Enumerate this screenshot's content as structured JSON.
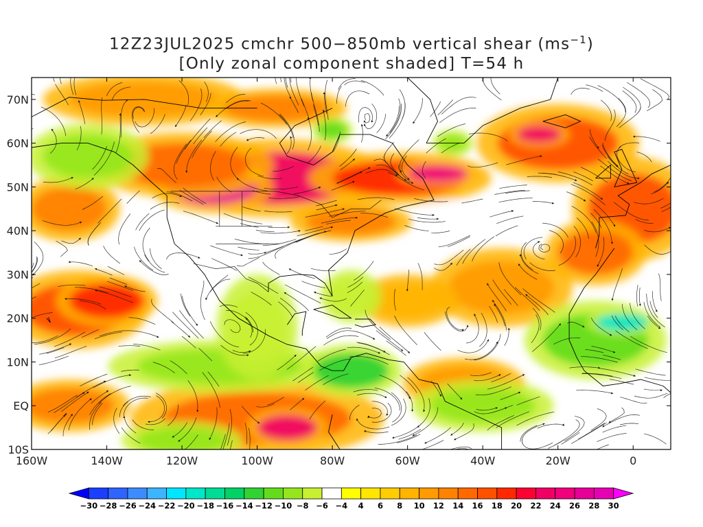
{
  "title": {
    "line1_main": "12Z23JUL2025 cmchr 500−850mb vertical shear (ms",
    "line1_sup": "−1",
    "line1_close": ")",
    "line2": "[Only zonal component shaded] T=54 h"
  },
  "map": {
    "extent": {
      "lon_min": -160,
      "lon_max": 10,
      "lat_min": -10,
      "lat_max": 75
    },
    "lat_labels": [
      {
        "lat": 70,
        "text": "70N"
      },
      {
        "lat": 60,
        "text": "60N"
      },
      {
        "lat": 50,
        "text": "50N"
      },
      {
        "lat": 40,
        "text": "40N"
      },
      {
        "lat": 30,
        "text": "30N"
      },
      {
        "lat": 20,
        "text": "20N"
      },
      {
        "lat": 10,
        "text": "10N"
      },
      {
        "lat": 0,
        "text": "EQ"
      },
      {
        "lat": -10,
        "text": "10S"
      }
    ],
    "lon_labels": [
      {
        "lon": -160,
        "text": "160W"
      },
      {
        "lon": -140,
        "text": "140W"
      },
      {
        "lon": -120,
        "text": "120W"
      },
      {
        "lon": -100,
        "text": "100W"
      },
      {
        "lon": -80,
        "text": "80W"
      },
      {
        "lon": -60,
        "text": "60W"
      },
      {
        "lon": -40,
        "text": "40W"
      },
      {
        "lon": -20,
        "text": "20W"
      },
      {
        "lon": 0,
        "text": "0"
      }
    ],
    "shear_blobs": [
      {
        "lon": -95,
        "lat": 52,
        "rlon": 22,
        "rlat": 6,
        "value": 22
      },
      {
        "lon": -112,
        "lat": 50,
        "rlon": 12,
        "rlat": 4,
        "value": 26
      },
      {
        "lon": -120,
        "lat": 55,
        "rlon": 18,
        "rlat": 5,
        "value": 14
      },
      {
        "lon": -62,
        "lat": 52,
        "rlon": 18,
        "rlat": 4,
        "value": 18
      },
      {
        "lon": -52,
        "lat": 53,
        "rlon": 8,
        "rlat": 2,
        "value": 24
      },
      {
        "lon": -20,
        "lat": 60,
        "rlon": 16,
        "rlat": 6,
        "value": 16
      },
      {
        "lon": -25,
        "lat": 62,
        "rlon": 6,
        "rlat": 2,
        "value": 22
      },
      {
        "lon": 0,
        "lat": 45,
        "rlon": 12,
        "rlat": 8,
        "value": 16
      },
      {
        "lon": -148,
        "lat": 22,
        "rlon": 14,
        "rlat": 6,
        "value": 16
      },
      {
        "lon": -140,
        "lat": 24,
        "rlon": 10,
        "rlat": 4,
        "value": 18
      },
      {
        "lon": -100,
        "lat": -3,
        "rlon": 25,
        "rlat": 6,
        "value": 14
      },
      {
        "lon": -92,
        "lat": -5,
        "rlon": 8,
        "rlat": 3,
        "value": 22
      },
      {
        "lon": -150,
        "lat": 0,
        "rlon": 12,
        "rlat": 4,
        "value": 12
      },
      {
        "lon": -45,
        "lat": 5,
        "rlon": 12,
        "rlat": 4,
        "value": 10
      },
      {
        "lon": -35,
        "lat": 27,
        "rlon": 14,
        "rlat": 6,
        "value": 10
      },
      {
        "lon": -10,
        "lat": 35,
        "rlon": 10,
        "rlat": 5,
        "value": 14
      },
      {
        "lon": -75,
        "lat": 42,
        "rlon": 12,
        "rlat": 3,
        "value": 12
      },
      {
        "lon": -150,
        "lat": 45,
        "rlon": 10,
        "rlat": 5,
        "value": 12
      },
      {
        "lon": -130,
        "lat": 70,
        "rlon": 20,
        "rlat": 4,
        "value": 10
      },
      {
        "lon": -95,
        "lat": 68,
        "rlon": 14,
        "rlat": 3,
        "value": 12
      },
      {
        "lon": -60,
        "lat": 24,
        "rlon": 10,
        "rlat": 4,
        "value": 8
      },
      {
        "lon": -145,
        "lat": 57,
        "rlon": 12,
        "rlat": 5,
        "value": -10
      },
      {
        "lon": -110,
        "lat": 9,
        "rlon": 22,
        "rlat": 4,
        "value": -10
      },
      {
        "lon": -75,
        "lat": 8,
        "rlon": 10,
        "rlat": 4,
        "value": -14
      },
      {
        "lon": -40,
        "lat": 0,
        "rlon": 14,
        "rlat": 4,
        "value": -10
      },
      {
        "lon": -10,
        "lat": 15,
        "rlon": 14,
        "rlat": 6,
        "value": -12
      },
      {
        "lon": -3,
        "lat": 19,
        "rlon": 7,
        "rlat": 2,
        "value": -20
      },
      {
        "lon": -120,
        "lat": -8,
        "rlon": 12,
        "rlat": 3,
        "value": -10
      },
      {
        "lon": -100,
        "lat": 18,
        "rlon": 8,
        "rlat": 8,
        "value": -8
      },
      {
        "lon": -75,
        "lat": 25,
        "rlon": 6,
        "rlat": 4,
        "value": -8
      },
      {
        "lon": -50,
        "lat": 42,
        "rlon": 5,
        "rlat": 3,
        "value": -6
      },
      {
        "lon": -80,
        "lat": 63,
        "rlon": 4,
        "rlat": 2,
        "value": -12
      },
      {
        "lon": -48,
        "lat": 60,
        "rlon": 4,
        "rlat": 2,
        "value": -10
      }
    ]
  },
  "colorbar": {
    "labels": [
      "−30",
      "−28",
      "−26",
      "−24",
      "−22",
      "−20",
      "−18",
      "−16",
      "−14",
      "−12",
      "−10",
      "−8",
      "−6",
      "−4",
      "4",
      "6",
      "8",
      "10",
      "12",
      "14",
      "16",
      "18",
      "20",
      "22",
      "24",
      "26",
      "28",
      "30"
    ],
    "colors": [
      "#0000ff",
      "#1a3fff",
      "#2e64ff",
      "#3c8cff",
      "#3cb4ff",
      "#00e6ff",
      "#00e6c8",
      "#00dc96",
      "#00d264",
      "#32d232",
      "#64dc1e",
      "#96e61e",
      "#c8f032",
      "#ffffff",
      "#ffff00",
      "#ffe600",
      "#ffcd00",
      "#ffb400",
      "#ff9b00",
      "#ff8200",
      "#ff6900",
      "#ff5000",
      "#ff2800",
      "#ff0032",
      "#f00064",
      "#f0007d",
      "#e60096",
      "#e600b4",
      "#ff00ff"
    ]
  }
}
